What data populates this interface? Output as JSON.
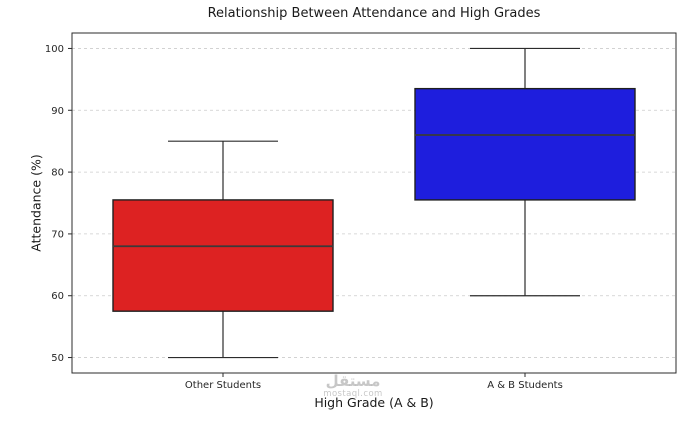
{
  "chart_data": {
    "type": "box",
    "title": "Relationship Between Attendance and High Grades",
    "xlabel": "High Grade (A & B)",
    "ylabel": "Attendance (%)",
    "ylim": [
      47.5,
      102.5
    ],
    "yticks": [
      50,
      60,
      70,
      80,
      90,
      100
    ],
    "grid": "horizontal-dashed",
    "legend_position": "none",
    "categories": [
      "Other Students",
      "A & B Students"
    ],
    "series": [
      {
        "name": "Other Students",
        "color": "#dd2222",
        "whisker_low": 50,
        "q1": 57.5,
        "median": 68,
        "q3": 75.5,
        "whisker_high": 85
      },
      {
        "name": "A & B Students",
        "color": "#1e1edd",
        "whisker_low": 60,
        "q1": 75.5,
        "median": 86,
        "q3": 93.5,
        "whisker_high": 100
      }
    ],
    "colors": {
      "box_edge": "#1f1f1f",
      "median_line": "#3a3a3a",
      "whisker": "#2b2b2b",
      "gridline": "#cccccc",
      "axis": "#2b2b2b",
      "tick_label": "#262626"
    }
  },
  "watermark": {
    "line1": "مستقل",
    "line2": "mostaql.com"
  }
}
